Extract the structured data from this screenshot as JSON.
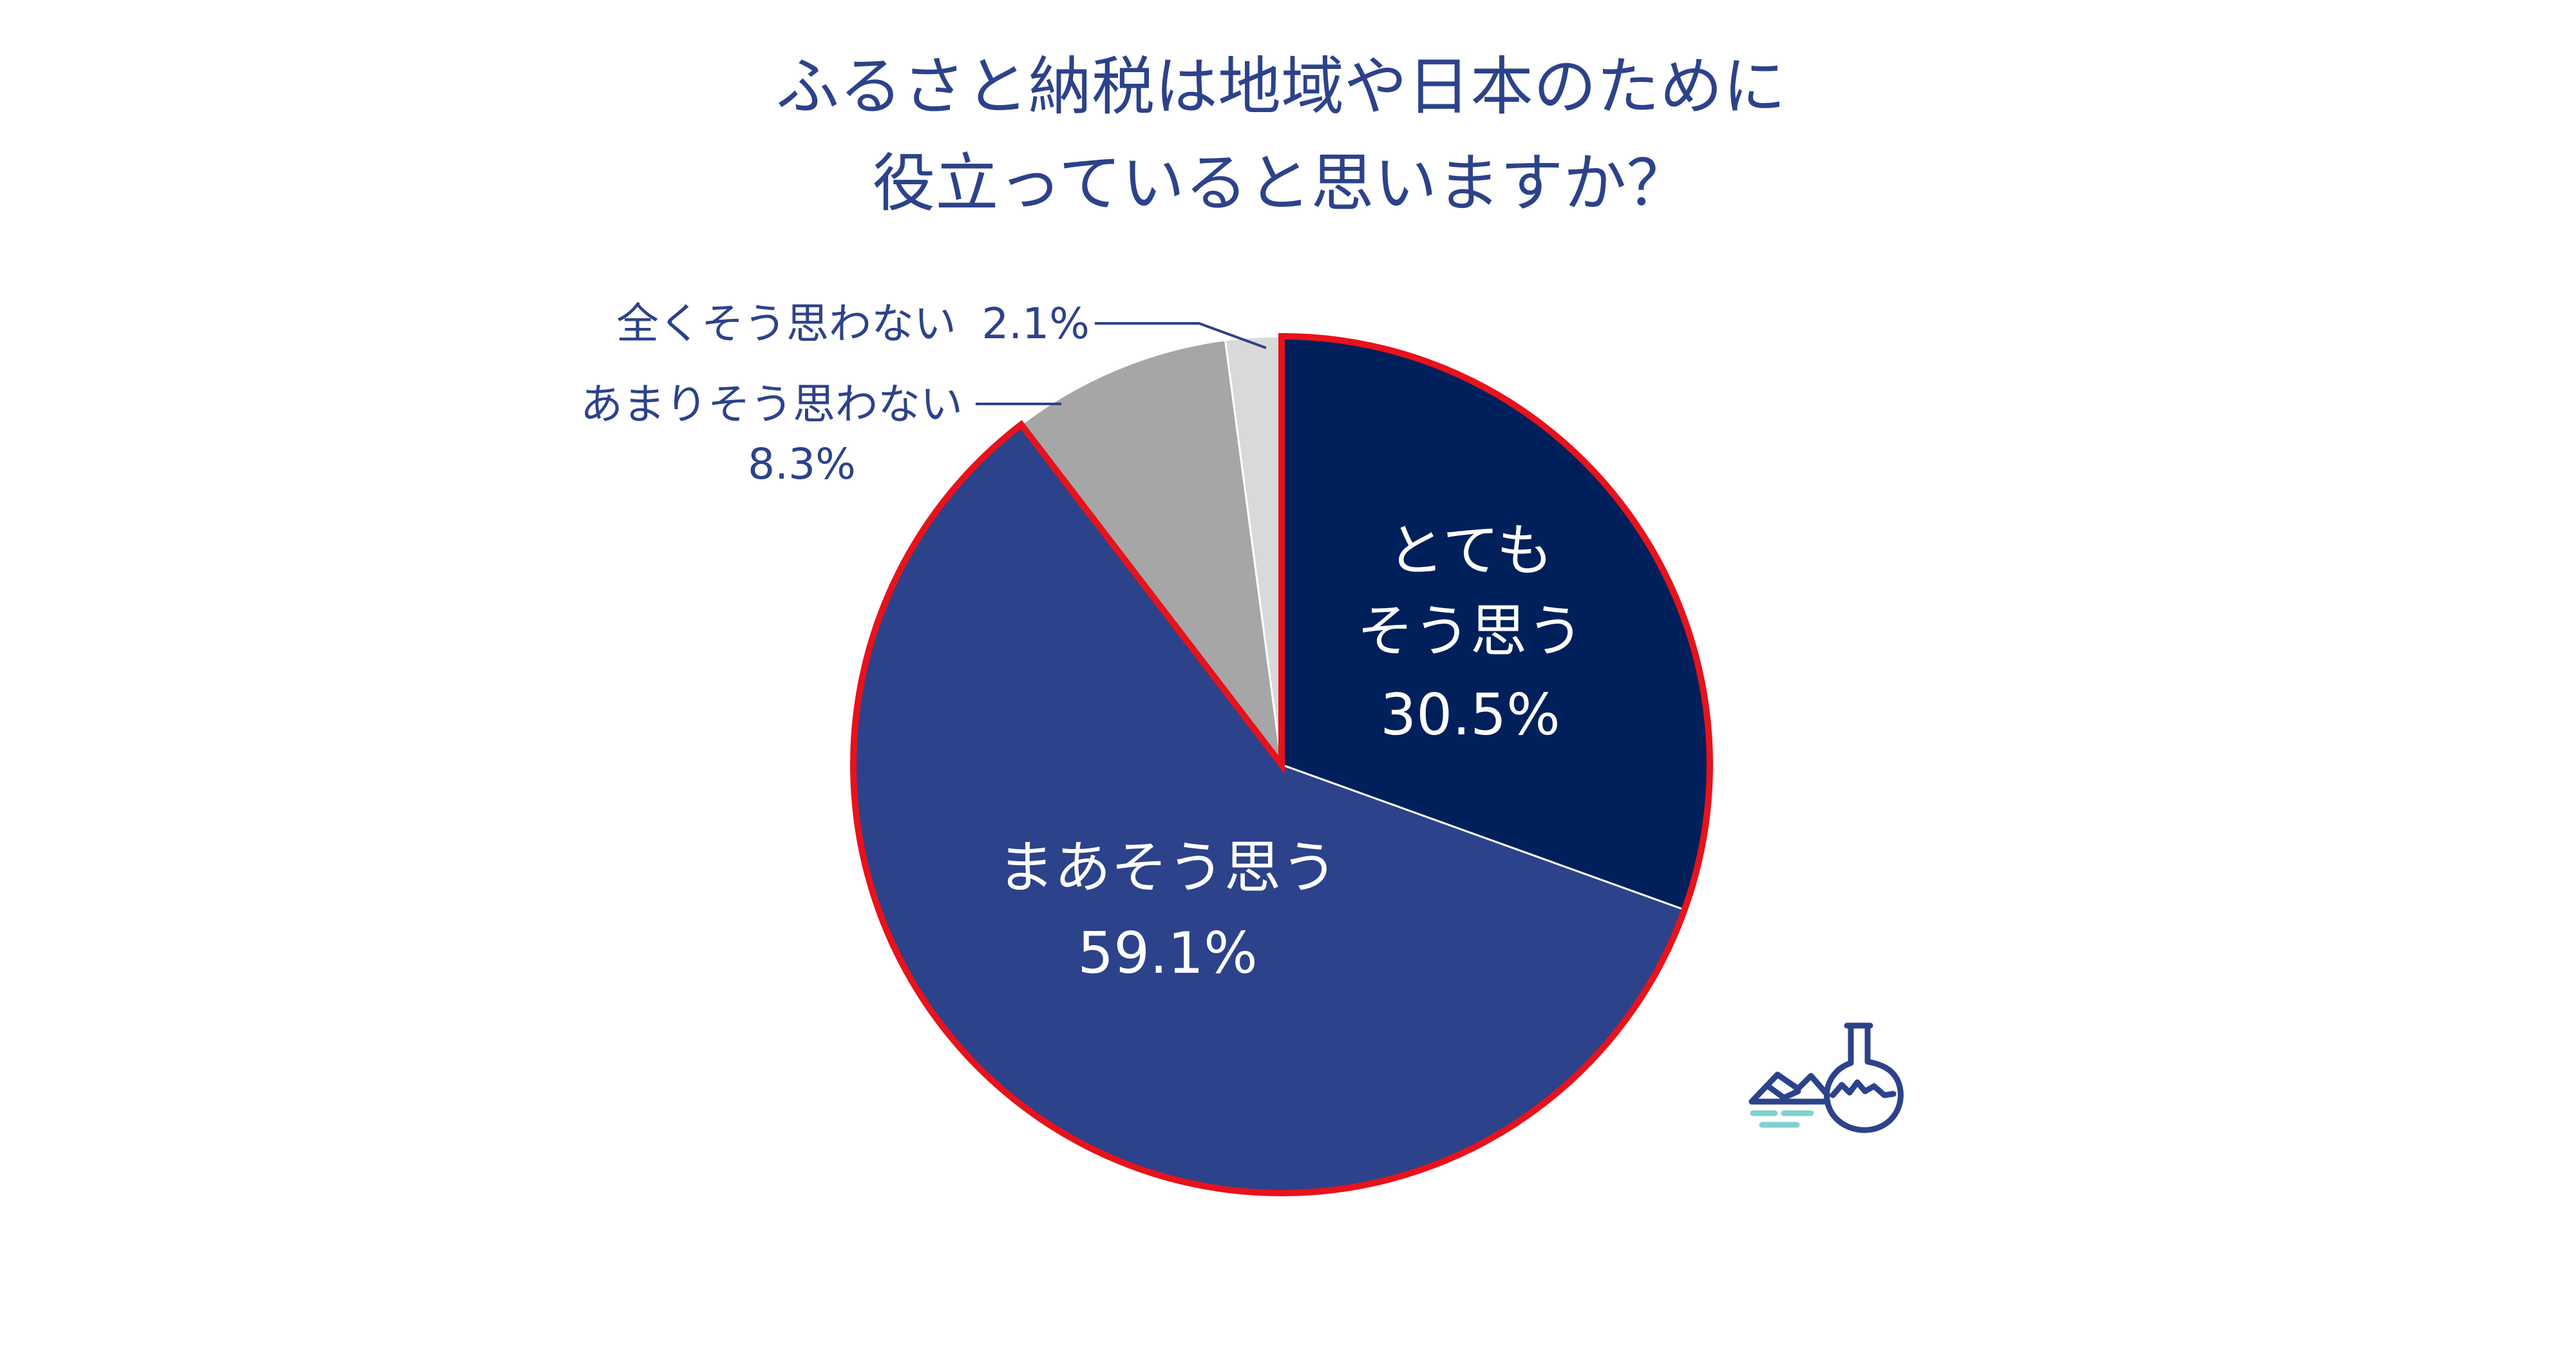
{
  "chart_data": {
    "type": "pie",
    "title_lines": [
      "ふるさと納税は地域や日本のために",
      "役立っていると思いますか？"
    ],
    "slices": [
      {
        "label_lines": [
          "とても",
          "そう思う"
        ],
        "value_text": "30.5%",
        "value": 30.5,
        "color": "#00205b",
        "highlight": true
      },
      {
        "label_lines": [
          "まあそう思う"
        ],
        "value_text": "59.1%",
        "value": 59.1,
        "color": "#2c428a",
        "highlight": true
      },
      {
        "label_lines": [
          "あまりそう思わない"
        ],
        "value_text": "8.3%",
        "value": 8.3,
        "color": "#a6a6a6",
        "highlight": false
      },
      {
        "label_lines": [
          "全くそう思わない"
        ],
        "value_text": "2.1%",
        "value": 2.1,
        "color": "#d9d9d9",
        "highlight": false
      }
    ],
    "label_color": "#2c428a",
    "highlight_color": "#e8121b"
  },
  "logo": {
    "name": "flask-landscape-logo",
    "color": "#2c428a",
    "accent": "#7fd3d0"
  }
}
